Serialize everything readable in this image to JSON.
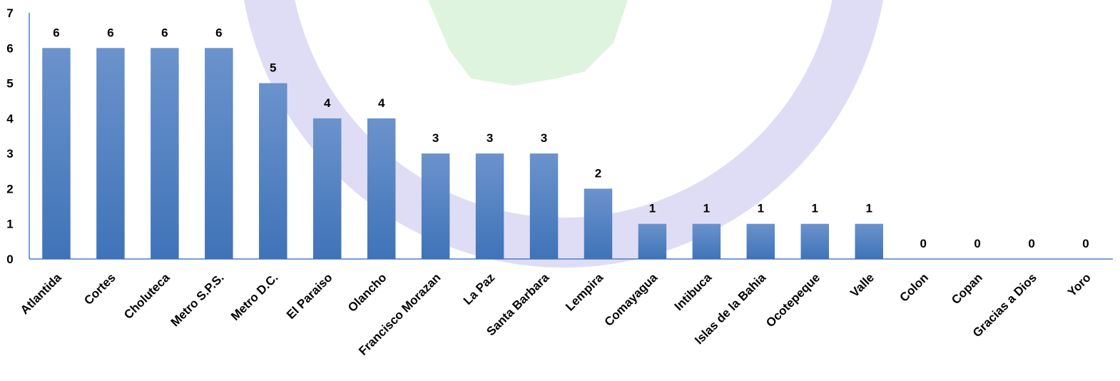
{
  "chart_data": {
    "type": "bar",
    "categories": [
      "Atlantida",
      "Cortes",
      "Choluteca",
      "Metro S.P.S.",
      "Metro D.C.",
      "El Paraiso",
      "Olancho",
      "Francisco Morazan",
      "La Paz",
      "Santa Barbara",
      "Lempira",
      "Comayagua",
      "Intibuca",
      "Islas de la Bahia",
      "Ocotepeque",
      "Valle",
      "Colon",
      "Copan",
      "Gracias a Dios",
      "Yoro"
    ],
    "values": [
      6,
      6,
      6,
      6,
      5,
      4,
      4,
      3,
      3,
      3,
      2,
      1,
      1,
      1,
      1,
      1,
      0,
      0,
      0,
      0
    ],
    "y_ticks": [
      "0",
      "1",
      "2",
      "3",
      "4",
      "5",
      "6",
      "7"
    ],
    "ylim": [
      0,
      7
    ],
    "data_labels": true,
    "grid": false,
    "colors": {
      "bar_top": "#6b93cc",
      "bar_bottom": "#3f73b8",
      "axis": "#4a7fc8"
    }
  }
}
